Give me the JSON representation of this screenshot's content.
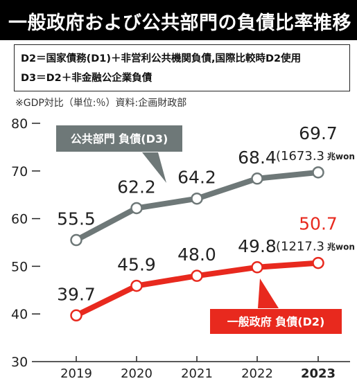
{
  "header": {
    "title": "一般政府および公共部門の負債比率推移"
  },
  "definitions": {
    "line1": "D2＝国家債務(D1)＋非営利公共機関負債,国際比較時D2使用",
    "line2": "D3＝D2＋非金融公企業負債"
  },
  "note": "※GDP対比（単位:％）資料:企画財政部",
  "colors": {
    "public_sector": "#6e7878",
    "general_government": "#e8291e"
  },
  "chart_data": {
    "type": "line",
    "x": [
      "2019",
      "2020",
      "2021",
      "2022",
      "2023"
    ],
    "yticks": [
      "80",
      "70",
      "60",
      "50",
      "40",
      "30"
    ],
    "ylim": [
      30,
      80
    ],
    "grid": false,
    "series": [
      {
        "name": "公共部門 負債(D3)",
        "values": [
          55.5,
          62.2,
          64.2,
          68.4,
          69.7
        ],
        "labels": [
          "55.5",
          "62.2",
          "64.2",
          "68.4",
          "69.7"
        ],
        "last_amount": "(1673.3",
        "last_unit": "兆won"
      },
      {
        "name": "一般政府 負債(D2)",
        "values": [
          39.7,
          45.9,
          48.0,
          49.8,
          50.7
        ],
        "labels": [
          "39.7",
          "45.9",
          "48.0",
          "49.8",
          "50.7"
        ],
        "last_amount": "(1217.3",
        "last_unit": "兆won"
      }
    ]
  }
}
